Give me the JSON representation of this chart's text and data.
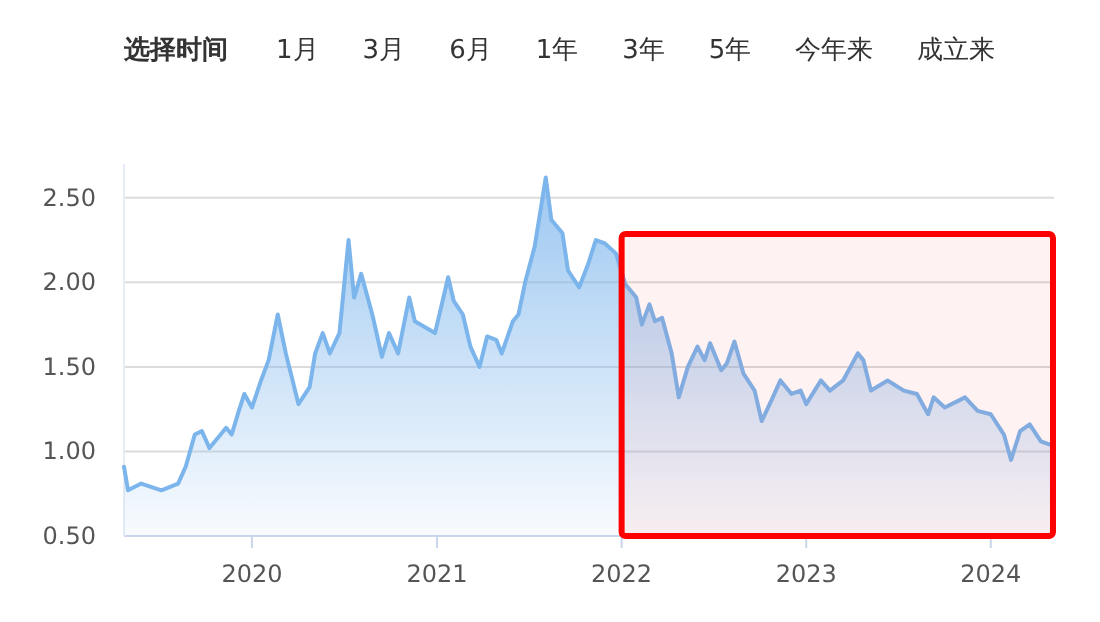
{
  "chart_data": {
    "type": "area",
    "annotations": [
      "选择时间",
      "1月",
      "3月",
      "6月",
      "1年",
      "3年",
      "5年",
      "今年来",
      "成立来"
    ],
    "xlim": [
      "2019-04-23",
      "2024-05-05"
    ],
    "xticks": [
      "2020",
      "2021",
      "2022",
      "2023",
      "2024"
    ],
    "ylim": [
      0.5,
      2.7
    ],
    "yticks": [
      {
        "value": 0.5,
        "label": "0.50"
      },
      {
        "value": 1,
        "label": "1.00"
      },
      {
        "value": 1.5,
        "label": "1.50"
      },
      {
        "value": 2,
        "label": "2.00"
      },
      {
        "value": 2.5,
        "label": "2.50"
      }
    ],
    "grid": "y",
    "bands": [
      {
        "axis": "x",
        "from": "2022-01-01",
        "to": "2024-05-03",
        "color": "#ff0000"
      }
    ],
    "series": [
      {
        "color": "#7cb5ec",
        "x": [
          "2019-04-23",
          "2019-05-01",
          "2019-05-27",
          "2019-07-06",
          "2019-08-08",
          "2019-08-23",
          "2019-09-10",
          "2019-09-24",
          "2019-10-09",
          "2019-11-11",
          "2019-11-22",
          "2019-12-06",
          "2019-12-17",
          "2020-01-01",
          "2020-01-19",
          "2020-02-03",
          "2020-02-21",
          "2020-03-08",
          "2020-04-02",
          "2020-04-24",
          "2020-05-05",
          "2020-05-20",
          "2020-06-03",
          "2020-06-22",
          "2020-07-10",
          "2020-07-21",
          "2020-08-04",
          "2020-08-26",
          "2020-09-14",
          "2020-09-28",
          "2020-10-16",
          "2020-11-07",
          "2020-11-18",
          "2020-12-28",
          "2021-01-23",
          "2021-02-03",
          "2021-02-21",
          "2021-03-08",
          "2021-03-26",
          "2021-04-10",
          "2021-04-28",
          "2021-05-09",
          "2021-05-31",
          "2021-06-11",
          "2021-06-25",
          "2021-07-13",
          "2021-08-04",
          "2021-08-15",
          "2021-09-06",
          "2021-09-17",
          "2021-10-09",
          "2021-10-27",
          "2021-11-11",
          "2021-11-29",
          "2021-12-21",
          "2022-01-08",
          "2022-01-30",
          "2022-02-10",
          "2022-02-25",
          "2022-03-08",
          "2022-03-22",
          "2022-04-10",
          "2022-04-24",
          "2022-05-12",
          "2022-05-31",
          "2022-06-14",
          "2022-06-25",
          "2022-07-17",
          "2022-07-28",
          "2022-08-12",
          "2022-08-30",
          "2022-09-21",
          "2022-10-05",
          "2022-10-24",
          "2022-11-11",
          "2022-12-03",
          "2022-12-21",
          "2023-01-01",
          "2023-01-30",
          "2023-02-17",
          "2023-03-15",
          "2023-04-13",
          "2023-04-24",
          "2023-05-09",
          "2023-06-11",
          "2023-07-13",
          "2023-08-08",
          "2023-08-30",
          "2023-09-10",
          "2023-10-02",
          "2023-11-11",
          "2023-12-06",
          "2024-01-01",
          "2024-01-27",
          "2024-02-10",
          "2024-02-28",
          "2024-03-18",
          "2024-04-09",
          "2024-04-27"
        ],
        "values": [
          0.91,
          0.77,
          0.81,
          0.77,
          0.81,
          0.91,
          1.1,
          1.12,
          1.02,
          1.14,
          1.1,
          1.24,
          1.34,
          1.26,
          1.42,
          1.54,
          1.81,
          1.58,
          1.28,
          1.38,
          1.58,
          1.7,
          1.58,
          1.7,
          2.25,
          1.91,
          2.05,
          1.81,
          1.56,
          1.7,
          1.58,
          1.91,
          1.77,
          1.7,
          2.03,
          1.89,
          1.81,
          1.62,
          1.5,
          1.68,
          1.66,
          1.58,
          1.77,
          1.81,
          2.01,
          2.21,
          2.62,
          2.37,
          2.29,
          2.07,
          1.97,
          2.11,
          2.25,
          2.23,
          2.17,
          1.99,
          1.91,
          1.75,
          1.87,
          1.77,
          1.79,
          1.58,
          1.32,
          1.5,
          1.62,
          1.54,
          1.64,
          1.48,
          1.52,
          1.65,
          1.46,
          1.36,
          1.18,
          1.3,
          1.42,
          1.34,
          1.36,
          1.28,
          1.42,
          1.36,
          1.42,
          1.58,
          1.54,
          1.36,
          1.42,
          1.36,
          1.34,
          1.22,
          1.32,
          1.26,
          1.32,
          1.24,
          1.22,
          1.1,
          0.95,
          1.12,
          1.16,
          1.06,
          1.04
        ]
      }
    ]
  }
}
